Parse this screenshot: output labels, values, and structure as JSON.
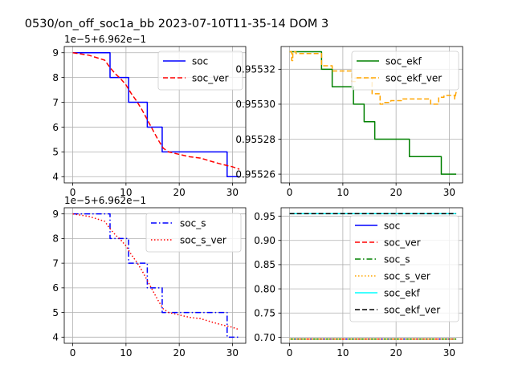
{
  "figure": {
    "suptitle": "0530/on_off_soc1a_bb   2023-07-10T11-35-14 DOM 3"
  },
  "chart_data": [
    {
      "type": "line",
      "xlim": [
        -1.6,
        32.5
      ],
      "ylim": [
        3.75,
        9.25
      ],
      "x_ticks": [
        0,
        10,
        20,
        30
      ],
      "y_ticks": [
        4,
        5,
        6,
        7,
        8,
        9
      ],
      "y_offset_text": "1e−5+6.962e−1",
      "grid": true,
      "legend_placement": "upper right",
      "series": [
        {
          "name": "soc",
          "color": "#0000ff",
          "dash": "solid",
          "step": true,
          "x": [
            0,
            7,
            7,
            10.5,
            10.5,
            14,
            14,
            16.8,
            16.8,
            29,
            29,
            31.3
          ],
          "y": [
            9,
            9,
            8,
            8,
            7,
            7,
            6,
            6,
            5,
            5,
            4,
            4
          ]
        },
        {
          "name": "soc_ver",
          "color": "#ff0000",
          "dash": "dashed",
          "step": false,
          "x": [
            0,
            3,
            6,
            7,
            8,
            9,
            10,
            11,
            12,
            13,
            14,
            15,
            16,
            17,
            18,
            20,
            22,
            24,
            26,
            28,
            30,
            31.3
          ],
          "y": [
            9,
            8.9,
            8.7,
            8.4,
            8.15,
            7.95,
            7.7,
            7.35,
            7.05,
            6.7,
            6.3,
            5.9,
            5.5,
            5.15,
            5.0,
            4.9,
            4.8,
            4.75,
            4.62,
            4.5,
            4.4,
            4.3
          ]
        }
      ]
    },
    {
      "type": "line",
      "xlim": [
        -1.6,
        32.5
      ],
      "ylim": [
        0.955255,
        0.955333
      ],
      "x_ticks": [
        0,
        10,
        20,
        30
      ],
      "y_ticks": [
        0.95526,
        0.95528,
        0.9553,
        0.95532
      ],
      "y_tick_labels": [
        "0.95526",
        "0.95528",
        "0.95530",
        "0.95532"
      ],
      "grid": true,
      "legend_placement": "upper right",
      "series": [
        {
          "name": "soc_ekf",
          "color": "#008000",
          "dash": "solid",
          "step": true,
          "x": [
            0,
            6,
            6,
            8,
            8,
            12,
            12,
            14,
            14,
            16,
            16,
            22.5,
            22.5,
            28.5,
            28.5,
            31.3
          ],
          "y": [
            0.95533,
            0.95533,
            0.95532,
            0.95532,
            0.95531,
            0.95531,
            0.9553,
            0.9553,
            0.95529,
            0.95529,
            0.95528,
            0.95528,
            0.95527,
            0.95527,
            0.95526,
            0.95526
          ]
        },
        {
          "name": "soc_ekf_ver",
          "color": "#ffa500",
          "dash": "dashed",
          "step": true,
          "x": [
            0,
            0.4,
            0.4,
            0.6,
            0.6,
            1.2,
            1.2,
            6,
            6,
            8,
            8,
            11.7,
            11.7,
            12.3,
            12.3,
            15.5,
            15.5,
            17,
            17,
            17.5,
            17.5,
            19,
            19,
            21,
            21,
            26.5,
            26.5,
            28,
            28,
            29,
            29,
            31,
            31,
            31.3
          ],
          "y": [
            0.95533,
            0.95533,
            0.955325,
            0.955325,
            0.95533,
            0.95533,
            0.955329,
            0.955329,
            0.955322,
            0.955322,
            0.955319,
            0.955319,
            0.955313,
            0.955313,
            0.955315,
            0.955315,
            0.955306,
            0.955306,
            0.9553,
            0.9553,
            0.955301,
            0.955301,
            0.955302,
            0.955302,
            0.955303,
            0.955303,
            0.9553,
            0.9553,
            0.955304,
            0.955304,
            0.955305,
            0.955305,
            0.955303,
            0.955307
          ]
        }
      ]
    },
    {
      "type": "line",
      "xlim": [
        -1.6,
        32.5
      ],
      "ylim": [
        3.75,
        9.25
      ],
      "x_ticks": [
        0,
        10,
        20,
        30
      ],
      "y_ticks": [
        4,
        5,
        6,
        7,
        8,
        9
      ],
      "y_offset_text": "1e−5+6.962e−1",
      "grid": true,
      "legend_placement": "upper right",
      "series": [
        {
          "name": "soc_s",
          "color": "#0000ff",
          "dash": "dashdot",
          "step": true,
          "x": [
            0,
            7,
            7,
            10.5,
            10.5,
            14,
            14,
            16.8,
            16.8,
            29,
            29,
            31.3
          ],
          "y": [
            9,
            9,
            8,
            8,
            7,
            7,
            6,
            6,
            5,
            5,
            4,
            4
          ]
        },
        {
          "name": "soc_s_ver",
          "color": "#ff0000",
          "dash": "dotted",
          "step": false,
          "x": [
            0,
            3,
            6,
            7,
            8,
            9,
            10,
            11,
            12,
            13,
            14,
            15,
            16,
            17,
            18,
            20,
            22,
            24,
            26,
            28,
            30,
            31.3
          ],
          "y": [
            9,
            8.9,
            8.7,
            8.4,
            8.15,
            7.95,
            7.7,
            7.35,
            7.05,
            6.7,
            6.3,
            5.9,
            5.5,
            5.15,
            5.0,
            4.9,
            4.8,
            4.75,
            4.62,
            4.5,
            4.4,
            4.3
          ]
        }
      ]
    },
    {
      "type": "line",
      "xlim": [
        -1.6,
        32.5
      ],
      "ylim": [
        0.6875,
        0.9675
      ],
      "x_ticks": [
        0,
        10,
        20,
        30
      ],
      "y_ticks": [
        0.7,
        0.75,
        0.8,
        0.85,
        0.9,
        0.95
      ],
      "y_tick_labels": [
        "0.70",
        "0.75",
        "0.80",
        "0.85",
        "0.90",
        "0.95"
      ],
      "grid": true,
      "legend_placement": "upper right",
      "series": [
        {
          "name": "soc",
          "color": "#0000ff",
          "dash": "solid",
          "step": false,
          "x": [
            0,
            31.3
          ],
          "y": [
            0.69625,
            0.69625
          ]
        },
        {
          "name": "soc_ver",
          "color": "#ff0000",
          "dash": "dashed",
          "step": false,
          "x": [
            0,
            31.3
          ],
          "y": [
            0.69625,
            0.69625
          ]
        },
        {
          "name": "soc_s",
          "color": "#008000",
          "dash": "dashdot",
          "step": false,
          "x": [
            0,
            31.3
          ],
          "y": [
            0.69625,
            0.69625
          ]
        },
        {
          "name": "soc_s_ver",
          "color": "#ffa500",
          "dash": "dotted",
          "step": false,
          "x": [
            0,
            31.3
          ],
          "y": [
            0.69625,
            0.69625
          ]
        },
        {
          "name": "soc_ekf",
          "color": "#00ffff",
          "dash": "solid",
          "step": false,
          "x": [
            0,
            31.3
          ],
          "y": [
            0.95533,
            0.95533
          ]
        },
        {
          "name": "soc_ekf_ver",
          "color": "#000000",
          "dash": "dashed",
          "step": false,
          "x": [
            0,
            31.3
          ],
          "y": [
            0.95533,
            0.95533
          ]
        }
      ]
    }
  ]
}
